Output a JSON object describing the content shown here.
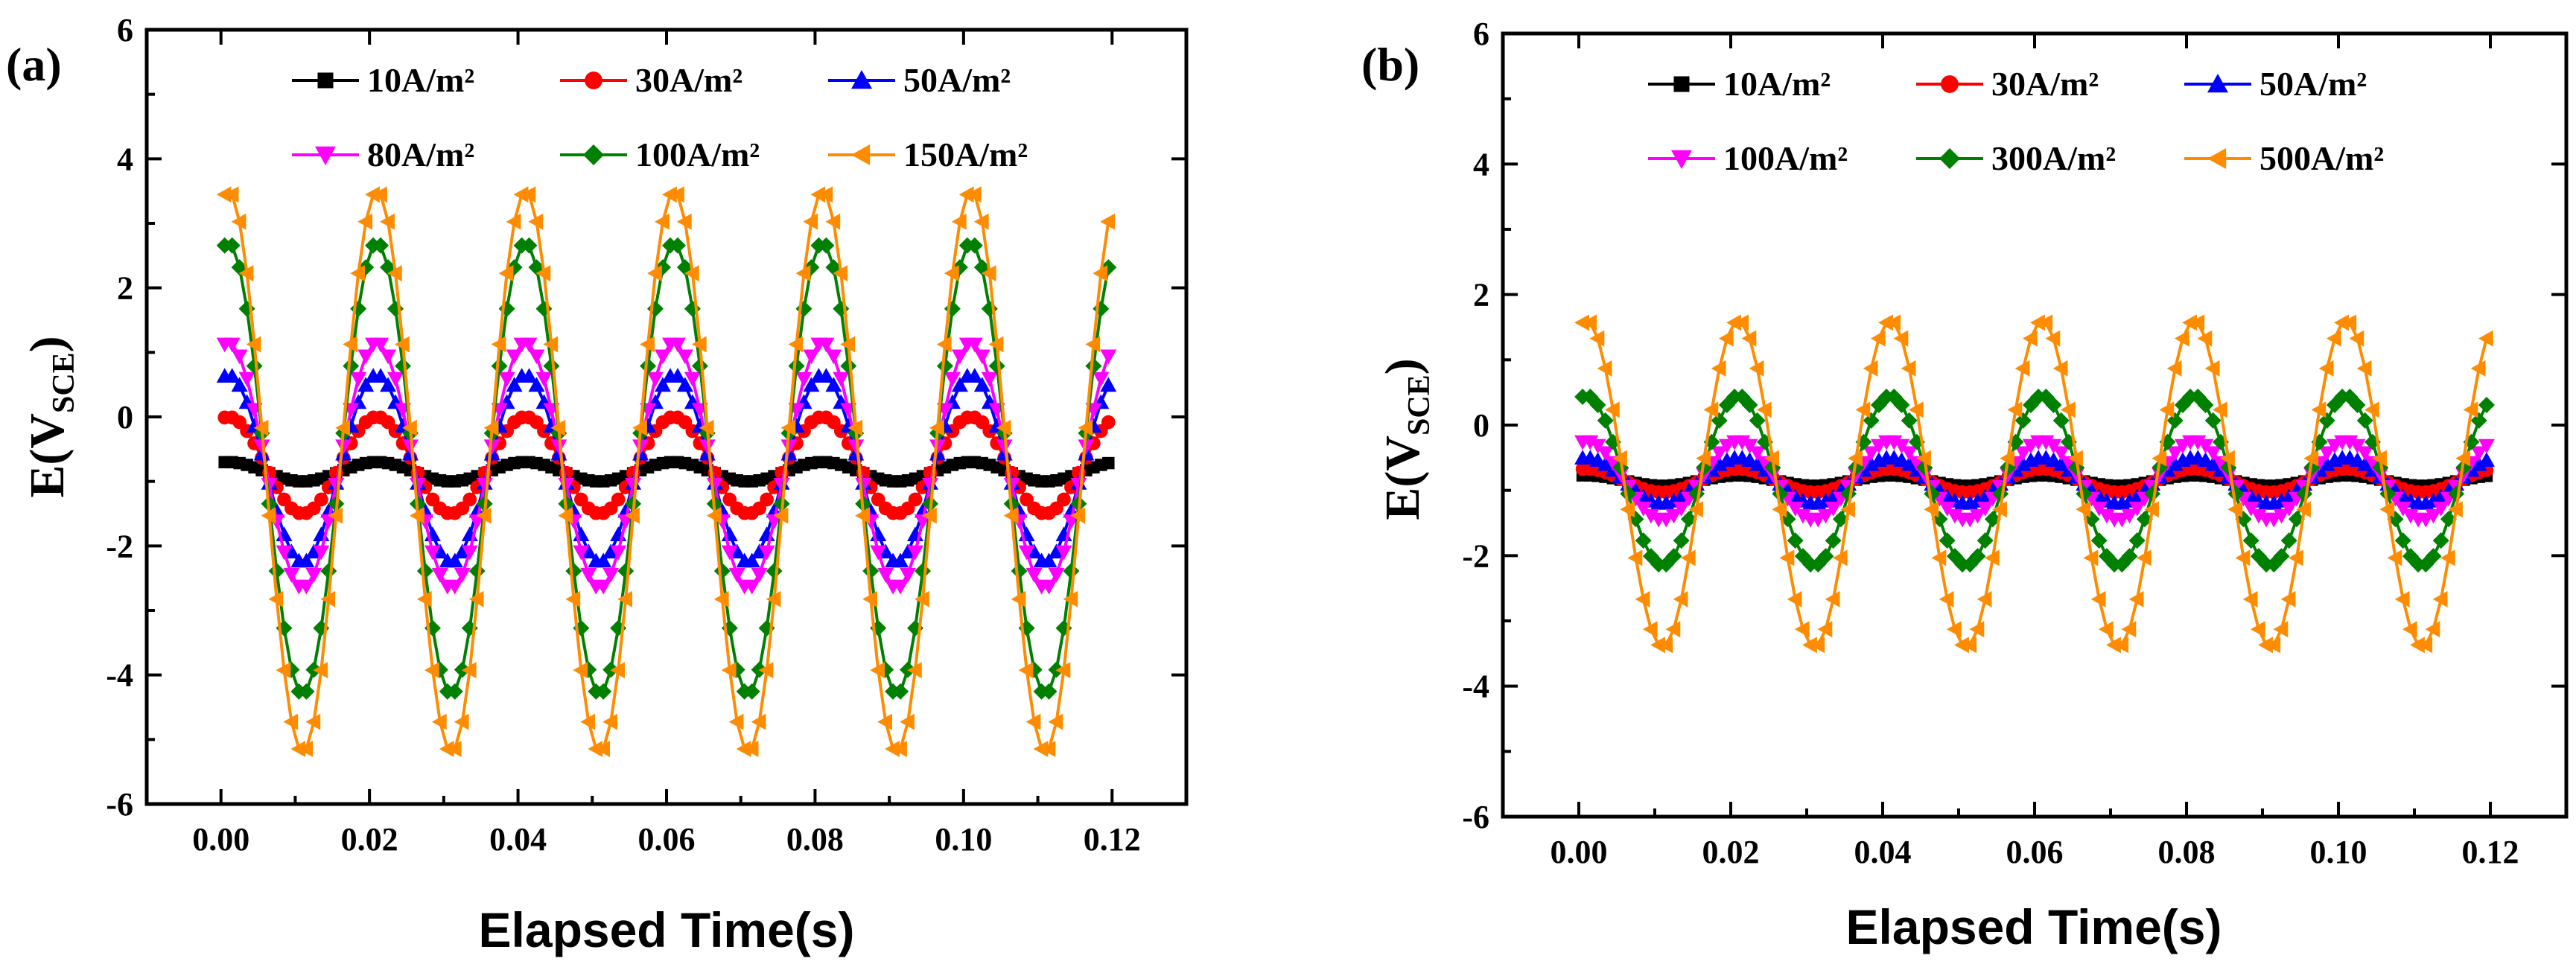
{
  "chart_data": [
    {
      "type": "line",
      "panel_label": "(a)",
      "xlabel": "Elapsed Time(s)",
      "ylabel": "E(V",
      "ylabel_sub": "SCE",
      "ylabel_close": ")",
      "xlim": [
        -0.01,
        0.13
      ],
      "ylim": [
        -6,
        6
      ],
      "x_ticks": [
        "0.00",
        "0.02",
        "0.04",
        "0.06",
        "0.08",
        "0.10",
        "0.12"
      ],
      "y_ticks": [
        "-6",
        "-4",
        "-2",
        "0",
        "2",
        "4",
        "6"
      ],
      "x_tick_values": [
        0,
        0.02,
        0.04,
        0.06,
        0.08,
        0.1,
        0.12
      ],
      "y_tick_values": [
        -6,
        -4,
        -2,
        0,
        2,
        4,
        6
      ],
      "period_s": 0.02,
      "legend_rows": 2,
      "series": [
        {
          "name": "10A/m²",
          "color": "#000000",
          "marker": "square",
          "center": -0.85,
          "amplitude": 0.15,
          "peak_time": 0.001
        },
        {
          "name": "30A/m²",
          "color": "#ff0000",
          "marker": "circle",
          "center": -0.75,
          "amplitude": 0.75,
          "peak_time": 0.001
        },
        {
          "name": "50A/m²",
          "color": "#0000ff",
          "marker": "triangle-up",
          "center": -0.8,
          "amplitude": 1.45,
          "peak_time": 0.001
        },
        {
          "name": "80A/m²",
          "color": "#ff00ff",
          "marker": "triangle-down",
          "center": -0.75,
          "amplitude": 1.9,
          "peak_time": 0.001
        },
        {
          "name": "100A/m²",
          "color": "#008000",
          "marker": "diamond",
          "center": -0.8,
          "amplitude": 3.5,
          "peak_time": 0.001
        },
        {
          "name": "150A/m²",
          "color": "#ff8c00",
          "marker": "triangle-left",
          "center": -0.85,
          "amplitude": 4.35,
          "peak_time": 0.001
        }
      ]
    },
    {
      "type": "line",
      "panel_label": "(b)",
      "xlabel": "Elapsed Time(s)",
      "ylabel": "E(V",
      "ylabel_sub": "SCE",
      "ylabel_close": ")",
      "xlim": [
        -0.01,
        0.13
      ],
      "ylim": [
        -6,
        6
      ],
      "x_ticks": [
        "0.00",
        "0.02",
        "0.04",
        "0.06",
        "0.08",
        "0.10",
        "0.12"
      ],
      "y_ticks": [
        "-6",
        "-4",
        "-2",
        "0",
        "2",
        "4",
        "6"
      ],
      "x_tick_values": [
        0,
        0.02,
        0.04,
        0.06,
        0.08,
        0.1,
        0.12
      ],
      "y_tick_values": [
        -6,
        -4,
        -2,
        0,
        2,
        4,
        6
      ],
      "period_s": 0.02,
      "legend_rows": 2,
      "series": [
        {
          "name": "10A/m²",
          "color": "#000000",
          "marker": "square",
          "center": -0.85,
          "amplitude": 0.08,
          "peak_time": 0.001
        },
        {
          "name": "30A/m²",
          "color": "#ff0000",
          "marker": "circle",
          "center": -0.85,
          "amplitude": 0.18,
          "peak_time": 0.001
        },
        {
          "name": "50A/m²",
          "color": "#0000ff",
          "marker": "triangle-up",
          "center": -0.85,
          "amplitude": 0.35,
          "peak_time": 0.001
        },
        {
          "name": "100A/m²",
          "color": "#ff00ff",
          "marker": "triangle-down",
          "center": -0.85,
          "amplitude": 0.6,
          "peak_time": 0.001
        },
        {
          "name": "300A/m²",
          "color": "#008000",
          "marker": "diamond",
          "center": -0.85,
          "amplitude": 1.3,
          "peak_time": 0.001
        },
        {
          "name": "500A/m²",
          "color": "#ff8c00",
          "marker": "triangle-left",
          "center": -0.9,
          "amplitude": 2.5,
          "peak_time": 0.001
        }
      ]
    }
  ]
}
